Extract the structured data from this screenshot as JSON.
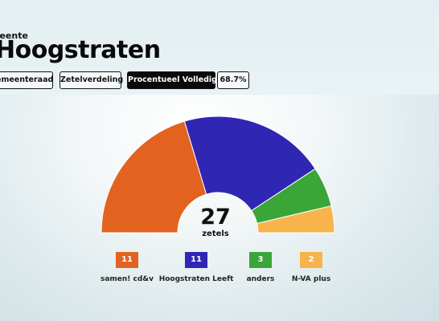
{
  "header": {
    "kicker": "meente",
    "title": "Hoogstraten",
    "tabs": [
      {
        "label": "emeenteraad",
        "active": false
      },
      {
        "label": "Zetelverdeling",
        "active": false
      },
      {
        "label": "Procentueel Volledig",
        "active": true
      },
      {
        "label": "68.7%",
        "active": false
      }
    ]
  },
  "chart_data": {
    "type": "pie",
    "shape": "semicircle",
    "total": 27,
    "center_label": "zetels",
    "series": [
      {
        "name": "samen! cd&v",
        "value": 11,
        "color": "#e2631f"
      },
      {
        "name": "Hoogstraten Leeft",
        "value": 11,
        "color": "#3026b4"
      },
      {
        "name": "anders",
        "value": 3,
        "color": "#3aa637"
      },
      {
        "name": "N-VA plus",
        "value": 2,
        "color": "#f7b44a"
      }
    ]
  }
}
